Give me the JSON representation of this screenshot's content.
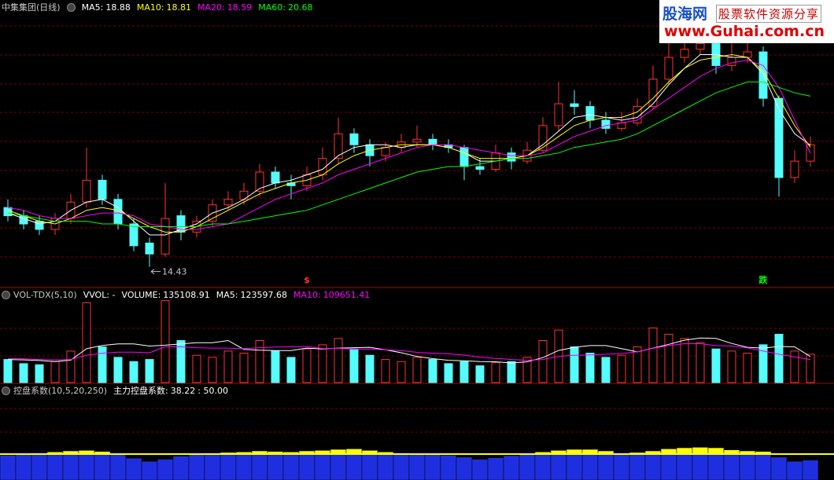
{
  "chart_data": [
    {
      "type": "candlestick",
      "title": "中集集团(日线)",
      "up_color": "#ff3232",
      "down_color": "#54fcfc",
      "ylim": [
        13.7,
        24.2
      ],
      "open": [
        16.6,
        16.3,
        16.1,
        15.8,
        16.2,
        16.8,
        17.6,
        16.9,
        16.0,
        15.3,
        14.9,
        16.3,
        15.7,
        16.1,
        16.7,
        16.9,
        17.2,
        17.9,
        17.5,
        17.4,
        17.8,
        18.4,
        19.3,
        18.9,
        18.5,
        18.8,
        19.0,
        19.1,
        18.9,
        18.8,
        18.1,
        18.0,
        18.6,
        18.3,
        18.7,
        19.6,
        20.4,
        20.3,
        19.8,
        19.5,
        19.7,
        20.3,
        21.3,
        22.1,
        22.4,
        22.6,
        21.8,
        22.1,
        22.3,
        20.6,
        17.7,
        18.3
      ],
      "high": [
        16.9,
        16.5,
        16.3,
        16.4,
        17.1,
        18.8,
        17.8,
        17.1,
        16.2,
        15.5,
        17.5,
        16.5,
        16.3,
        16.9,
        17.2,
        17.5,
        18.2,
        18.1,
        17.8,
        18.1,
        18.8,
        19.9,
        19.5,
        19.1,
        19.0,
        19.3,
        19.6,
        19.3,
        19.1,
        18.9,
        18.4,
        18.9,
        18.8,
        19.0,
        19.9,
        21.2,
        20.9,
        20.5,
        20.1,
        20.1,
        20.6,
        21.8,
        22.9,
        23.0,
        23.3,
        22.8,
        22.6,
        22.9,
        22.5,
        20.7,
        18.7,
        19.2
      ],
      "low": [
        16.1,
        15.8,
        15.6,
        15.6,
        16.0,
        16.6,
        16.7,
        15.8,
        15.0,
        14.43,
        14.8,
        15.4,
        15.5,
        15.9,
        16.5,
        16.7,
        17.0,
        17.3,
        16.9,
        17.2,
        17.6,
        18.2,
        18.6,
        18.1,
        18.3,
        18.6,
        18.8,
        18.7,
        18.6,
        17.6,
        17.8,
        17.9,
        18.0,
        18.2,
        18.6,
        19.4,
        20.0,
        19.5,
        19.3,
        19.4,
        19.6,
        20.2,
        21.1,
        21.9,
        22.2,
        21.5,
        21.6,
        21.9,
        20.3,
        17.0,
        17.5,
        18.1
      ],
      "close": [
        16.3,
        16.0,
        15.8,
        16.2,
        16.8,
        17.6,
        16.9,
        16.0,
        15.2,
        14.9,
        16.2,
        15.7,
        16.1,
        16.7,
        16.9,
        17.2,
        17.9,
        17.5,
        17.4,
        17.8,
        18.4,
        19.3,
        18.9,
        18.5,
        18.8,
        19.0,
        19.1,
        18.9,
        18.8,
        18.1,
        18.0,
        18.6,
        18.3,
        18.7,
        19.6,
        20.4,
        20.3,
        19.8,
        19.5,
        19.7,
        20.3,
        21.3,
        22.1,
        22.4,
        22.6,
        21.8,
        22.1,
        22.3,
        20.6,
        17.7,
        18.3,
        18.9
      ],
      "series": [
        {
          "name": "MA5:",
          "color": "#ffffff",
          "values": [
            16.4,
            16.2,
            16.0,
            16.1,
            16.5,
            16.8,
            16.9,
            16.6,
            16.1,
            15.6,
            15.6,
            15.8,
            16.0,
            16.4,
            16.6,
            16.9,
            17.3,
            17.5,
            17.6,
            17.8,
            18.0,
            18.5,
            18.8,
            18.9,
            18.9,
            18.8,
            18.9,
            18.9,
            18.8,
            18.6,
            18.3,
            18.3,
            18.4,
            18.5,
            18.9,
            19.4,
            19.9,
            20.0,
            19.9,
            19.8,
            19.9,
            20.4,
            21.1,
            21.7,
            22.2,
            22.2,
            22.1,
            22.1,
            21.5,
            20.2,
            19.3,
            18.88
          ]
        },
        {
          "name": "MA10:",
          "color": "#ffff00",
          "values": [
            16.5,
            16.3,
            16.1,
            16.0,
            16.2,
            16.5,
            16.6,
            16.5,
            16.2,
            15.9,
            15.7,
            15.7,
            15.9,
            16.2,
            16.5,
            16.8,
            17.1,
            17.3,
            17.5,
            17.6,
            17.8,
            18.2,
            18.5,
            18.7,
            18.8,
            18.9,
            18.9,
            18.9,
            18.8,
            18.6,
            18.4,
            18.4,
            18.4,
            18.5,
            18.8,
            19.2,
            19.6,
            19.8,
            19.9,
            19.9,
            20.1,
            20.6,
            21.2,
            21.7,
            22.0,
            22.1,
            22.2,
            22.1,
            21.6,
            20.6,
            19.6,
            18.81
          ]
        },
        {
          "name": "MA20:",
          "color": "#ff00ff",
          "values": [
            16.6,
            16.5,
            16.3,
            16.2,
            16.2,
            16.3,
            16.4,
            16.4,
            16.3,
            16.0,
            15.9,
            15.8,
            15.8,
            15.9,
            16.0,
            16.3,
            16.6,
            16.9,
            17.1,
            17.3,
            17.5,
            17.8,
            18.0,
            18.2,
            18.4,
            18.6,
            18.8,
            18.9,
            18.9,
            18.8,
            18.7,
            18.6,
            18.5,
            18.5,
            18.6,
            18.9,
            19.2,
            19.4,
            19.6,
            19.7,
            19.8,
            20.2,
            20.6,
            21.0,
            21.4,
            21.7,
            21.9,
            22.0,
            21.8,
            21.0,
            19.8,
            18.59
          ]
        },
        {
          "name": "MA60:",
          "color": "#00ff00",
          "values": [
            16.4,
            16.3,
            16.2,
            16.1,
            16.1,
            16.1,
            16.0,
            16.0,
            15.9,
            15.9,
            15.9,
            15.9,
            15.9,
            16.0,
            16.0,
            16.1,
            16.2,
            16.3,
            16.4,
            16.5,
            16.7,
            16.9,
            17.1,
            17.3,
            17.5,
            17.7,
            17.9,
            18.0,
            18.1,
            18.1,
            18.2,
            18.3,
            18.4,
            18.4,
            18.5,
            18.6,
            18.8,
            18.9,
            19.0,
            19.1,
            19.3,
            19.6,
            19.9,
            20.2,
            20.5,
            20.8,
            21.0,
            21.2,
            21.2,
            21.0,
            20.8,
            20.68
          ]
        }
      ],
      "markers": [
        {
          "text": "$",
          "color": "#ff3232"
        },
        {
          "text": "跌",
          "color": "#00ff00"
        }
      ],
      "watermark": {
        "brand": "股海网",
        "slogan": "股票软件资源分享",
        "url": "www.Guhai.com.cn"
      }
    },
    {
      "type": "bar",
      "title": "VOL-TDX(5,10)",
      "subtitle": "VVOL: -",
      "ylim": [
        0,
        400000
      ],
      "series": [
        {
          "name": "VOLUME:",
          "color": "#ffffff",
          "values": [
            110000,
            90000,
            85000,
            100000,
            150000,
            380000,
            170000,
            120000,
            100000,
            110000,
            390000,
            200000,
            130000,
            120000,
            150000,
            140000,
            200000,
            150000,
            120000,
            160000,
            180000,
            210000,
            160000,
            130000,
            110000,
            100000,
            120000,
            110000,
            90000,
            100000,
            80000,
            95000,
            100000,
            120000,
            200000,
            250000,
            170000,
            140000,
            120000,
            130000,
            170000,
            260000,
            230000,
            210000,
            190000,
            160000,
            150000,
            140000,
            180000,
            230000,
            150000,
            135108.91
          ]
        },
        {
          "name": "MA5:",
          "color": "#ffffff",
          "values": [
            110000,
            108000,
            105000,
            100000,
            107000,
            161000,
            177000,
            184000,
            184000,
            174000,
            178000,
            184000,
            190000,
            190000,
            200000,
            158000,
            154000,
            152000,
            152000,
            164000,
            160000,
            164000,
            166000,
            168000,
            156000,
            142000,
            124000,
            114000,
            106000,
            104000,
            100000,
            99000,
            93000,
            99000,
            119000,
            153000,
            168000,
            176000,
            176000,
            162000,
            146000,
            164000,
            182000,
            202000,
            212000,
            210000,
            186000,
            168000,
            164000,
            172000,
            170000,
            123597.68
          ]
        },
        {
          "name": "MA10:",
          "color": "#ff00ff",
          "values": [
            115000,
            113000,
            110000,
            108000,
            110000,
            130000,
            140000,
            145000,
            145000,
            142000,
            170000,
            170000,
            166000,
            164000,
            164000,
            162000,
            166000,
            169000,
            170000,
            172000,
            162000,
            163000,
            159000,
            160000,
            156000,
            152000,
            144000,
            140000,
            137000,
            131000,
            121000,
            115000,
            110000,
            106000,
            110000,
            125000,
            130000,
            132000,
            135000,
            138000,
            147000,
            163000,
            176000,
            185000,
            185000,
            176000,
            174000,
            165000,
            150000,
            135000,
            122000,
            109651.41
          ]
        }
      ]
    },
    {
      "type": "bar",
      "title": "控盘系数(10,5,20,250)",
      "ylim": [
        0,
        168
      ],
      "threshold": {
        "value": 50,
        "label": ": 50.00"
      },
      "threshold_color": "#ffff00",
      "series": [
        {
          "name": "主力控盘系数:",
          "color": "#1f2fe0",
          "values": [
            48,
            50,
            52,
            54,
            56,
            57,
            55,
            50,
            42,
            36,
            40,
            46,
            50,
            52,
            53,
            54,
            56,
            55,
            54,
            56,
            57,
            59,
            60,
            57,
            54,
            52,
            51,
            50,
            48,
            44,
            40,
            43,
            47,
            50,
            54,
            57,
            59,
            59,
            56,
            52,
            53,
            56,
            60,
            62,
            63,
            62,
            58,
            56,
            55,
            44,
            36,
            38.22
          ]
        }
      ]
    }
  ]
}
